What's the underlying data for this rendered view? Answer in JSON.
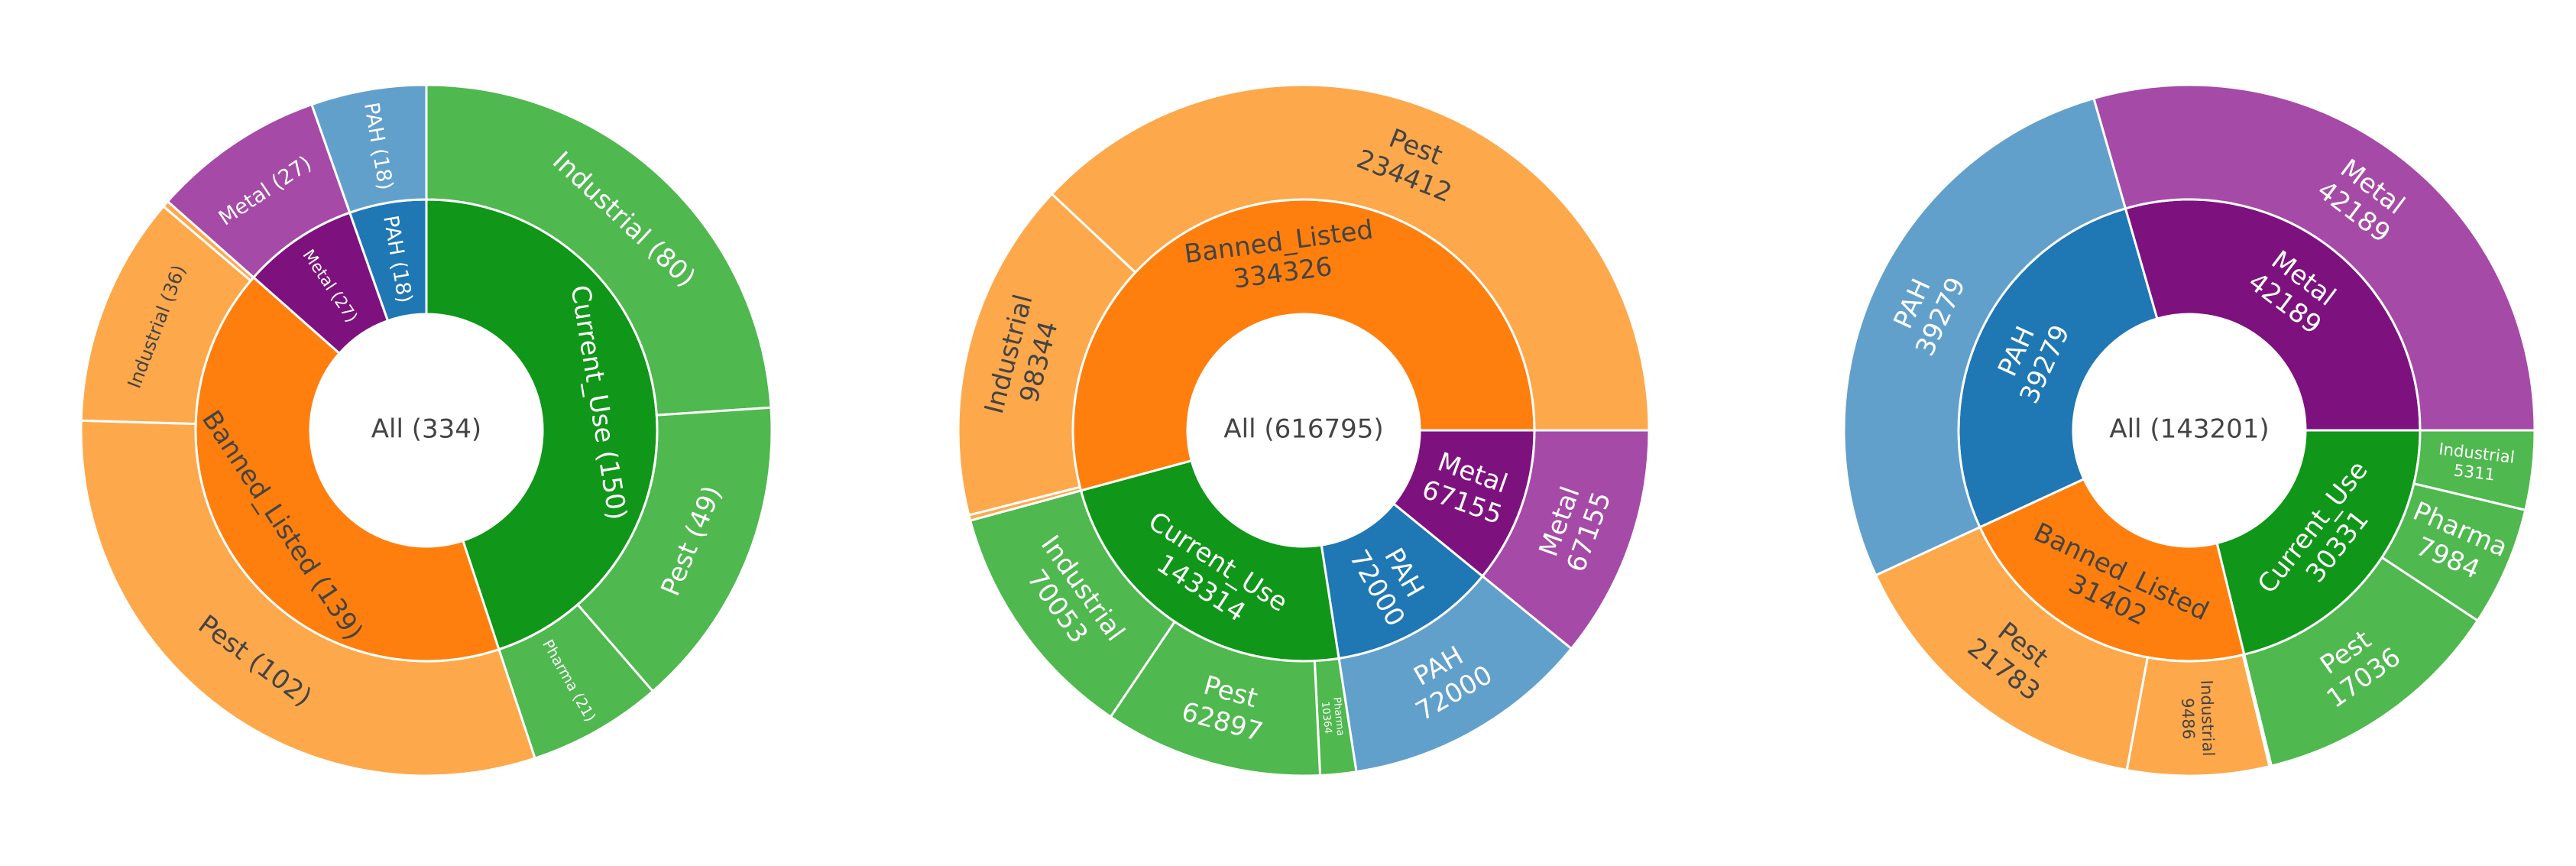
{
  "chart_data": [
    {
      "type": "sunburst",
      "title": "",
      "root": {
        "label": "All (334)",
        "value": 334
      },
      "groups": [
        {
          "label": "Current_Use (150)",
          "value": 150,
          "color": "#109618",
          "children": [
            {
              "label": "Industrial (80)",
              "value": 80,
              "color": "#4fb84f"
            },
            {
              "label": "Pest (49)",
              "value": 49,
              "color": "#4fb84f"
            },
            {
              "label": "Pharma (21)",
              "value": 21,
              "color": "#4fb84f"
            }
          ]
        },
        {
          "label": "Banned_Listed (139)",
          "value": 139,
          "color": "#ff7f0e",
          "children": [
            {
              "label": "Pest (102)",
              "value": 102,
              "color": "#fea84c"
            },
            {
              "label": "Industrial (36)",
              "value": 36,
              "color": "#fea84c"
            },
            {
              "label": "",
              "value": 1,
              "color": "#fea84c"
            }
          ]
        },
        {
          "label": "Metal (27)",
          "value": 27,
          "color": "#7d127e",
          "children": [
            {
              "label": "Metal (27)",
              "value": 27,
              "color": "#a54aa7"
            }
          ]
        },
        {
          "label": "PAH (18)",
          "value": 18,
          "color": "#1f77b4",
          "children": [
            {
              "label": "PAH (18)",
              "value": 18,
              "color": "#62a0cc"
            }
          ]
        }
      ]
    },
    {
      "type": "sunburst",
      "title": "",
      "root": {
        "label": "All (616795)",
        "value": 616795
      },
      "groups": [
        {
          "label": "Metal|67155",
          "value": 67155,
          "color": "#7d127e",
          "children": [
            {
              "label": "Metal|67155",
              "value": 67155,
              "color": "#a54aa7"
            }
          ]
        },
        {
          "label": "PAH|72000",
          "value": 72000,
          "color": "#1f77b4",
          "children": [
            {
              "label": "PAH|72000",
              "value": 72000,
              "color": "#62a0cc"
            }
          ]
        },
        {
          "label": "Current_Use|143314",
          "value": 143314,
          "color": "#109618",
          "children": [
            {
              "label": "Pharma|10364",
              "value": 10364,
              "color": "#4fb84f"
            },
            {
              "label": "Pest|62897",
              "value": 62897,
              "color": "#4fb84f"
            },
            {
              "label": "Industrial|70053",
              "value": 70053,
              "color": "#4fb84f"
            }
          ]
        },
        {
          "label": "Banned_Listed|334326",
          "value": 334326,
          "color": "#ff7f0e",
          "children": [
            {
              "label": "",
              "value": 1570,
              "color": "#fea84c"
            },
            {
              "label": "Industrial|98344",
              "value": 98344,
              "color": "#fea84c"
            },
            {
              "label": "Pest|234412",
              "value": 234412,
              "color": "#fea84c"
            }
          ]
        }
      ]
    },
    {
      "type": "sunburst",
      "title": "",
      "root": {
        "label": "All (143201)",
        "value": 143201
      },
      "groups": [
        {
          "label": "Current_Use|30331",
          "value": 30331,
          "color": "#109618",
          "children": [
            {
              "label": "Industrial|5311",
              "value": 5311,
              "color": "#4fb84f"
            },
            {
              "label": "Pharma|7984",
              "value": 7984,
              "color": "#4fb84f"
            },
            {
              "label": "Pest|17036",
              "value": 17036,
              "color": "#4fb84f"
            }
          ]
        },
        {
          "label": "Banned_Listed|31402",
          "value": 31402,
          "color": "#ff7f0e",
          "children": [
            {
              "label": "",
              "value": 133,
              "color": "#fea84c"
            },
            {
              "label": "Industrial|9486",
              "value": 9486,
              "color": "#fea84c"
            },
            {
              "label": "Pest|21783",
              "value": 21783,
              "color": "#fea84c"
            }
          ]
        },
        {
          "label": "PAH|39279",
          "value": 39279,
          "color": "#1f77b4",
          "children": [
            {
              "label": "PAH|39279",
              "value": 39279,
              "color": "#62a0cc"
            }
          ]
        },
        {
          "label": "Metal|42189",
          "value": 42189,
          "color": "#7d127e",
          "children": [
            {
              "label": "Metal|42189",
              "value": 42189,
              "color": "#a54aa7"
            }
          ]
        }
      ]
    }
  ]
}
